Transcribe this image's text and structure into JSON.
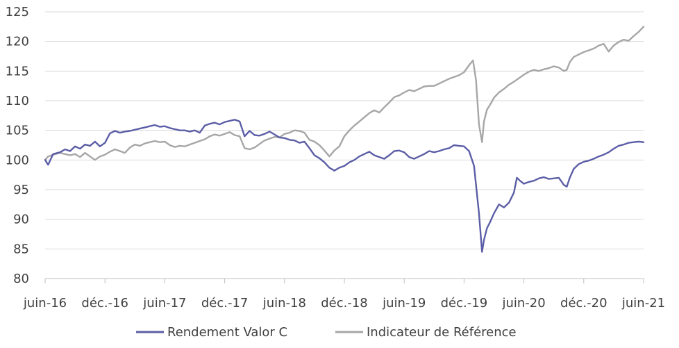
{
  "chart_data": {
    "type": "line",
    "title": "",
    "xlabel": "",
    "ylabel": "",
    "ylim": [
      80,
      125
    ],
    "y_ticks": [
      80,
      85,
      90,
      95,
      100,
      105,
      110,
      115,
      120,
      125
    ],
    "x_tick_labels": [
      "juin-16",
      "déc.-16",
      "juin-17",
      "déc.-17",
      "juin-18",
      "déc.-18",
      "juin-19",
      "déc.-19",
      "juin-20",
      "déc.-20",
      "juin-21"
    ],
    "xlim": [
      0,
      60
    ],
    "x_unit": "months since juin-16",
    "grid": "horizontal",
    "legend_position": "bottom",
    "series": [
      {
        "name": "Rendement Valor C",
        "color": "#5b5ea6",
        "points": [
          [
            0,
            100.0
          ],
          [
            0.3,
            99.2
          ],
          [
            0.8,
            101.0
          ],
          [
            1.5,
            101.3
          ],
          [
            2,
            101.8
          ],
          [
            2.5,
            101.5
          ],
          [
            3,
            102.3
          ],
          [
            3.5,
            101.9
          ],
          [
            4,
            102.6
          ],
          [
            4.5,
            102.4
          ],
          [
            5,
            103.1
          ],
          [
            5.5,
            102.3
          ],
          [
            6,
            102.9
          ],
          [
            6.5,
            104.5
          ],
          [
            7,
            104.9
          ],
          [
            7.5,
            104.6
          ],
          [
            8,
            104.8
          ],
          [
            8.5,
            104.9
          ],
          [
            9,
            105.1
          ],
          [
            9.5,
            105.3
          ],
          [
            10,
            105.5
          ],
          [
            10.5,
            105.7
          ],
          [
            11,
            105.9
          ],
          [
            11.5,
            105.6
          ],
          [
            12,
            105.7
          ],
          [
            12.5,
            105.4
          ],
          [
            13,
            105.2
          ],
          [
            13.5,
            105.0
          ],
          [
            14,
            105.0
          ],
          [
            14.5,
            104.8
          ],
          [
            15,
            105.0
          ],
          [
            15.5,
            104.6
          ],
          [
            16,
            105.8
          ],
          [
            16.5,
            106.1
          ],
          [
            17,
            106.3
          ],
          [
            17.5,
            106.0
          ],
          [
            18,
            106.4
          ],
          [
            18.5,
            106.6
          ],
          [
            19,
            106.8
          ],
          [
            19.5,
            106.5
          ],
          [
            20,
            104.0
          ],
          [
            20.5,
            104.9
          ],
          [
            21,
            104.2
          ],
          [
            21.5,
            104.1
          ],
          [
            22,
            104.4
          ],
          [
            22.5,
            104.8
          ],
          [
            23,
            104.3
          ],
          [
            23.5,
            103.8
          ],
          [
            24,
            103.7
          ],
          [
            24.5,
            103.4
          ],
          [
            25,
            103.3
          ],
          [
            25.5,
            102.9
          ],
          [
            26,
            103.1
          ],
          [
            26.5,
            102.0
          ],
          [
            27,
            100.8
          ],
          [
            27.5,
            100.3
          ],
          [
            28,
            99.6
          ],
          [
            28.5,
            98.7
          ],
          [
            29,
            98.2
          ],
          [
            29.5,
            98.7
          ],
          [
            30,
            99.0
          ],
          [
            30.5,
            99.6
          ],
          [
            31,
            100.0
          ],
          [
            31.5,
            100.6
          ],
          [
            32,
            101.0
          ],
          [
            32.5,
            101.4
          ],
          [
            33,
            100.8
          ],
          [
            33.5,
            100.5
          ],
          [
            34,
            100.2
          ],
          [
            34.5,
            100.8
          ],
          [
            35,
            101.5
          ],
          [
            35.5,
            101.6
          ],
          [
            36,
            101.3
          ],
          [
            36.5,
            100.5
          ],
          [
            37,
            100.2
          ],
          [
            37.5,
            100.6
          ],
          [
            38,
            101.0
          ],
          [
            38.5,
            101.5
          ],
          [
            39,
            101.3
          ],
          [
            39.5,
            101.5
          ],
          [
            40,
            101.8
          ],
          [
            40.5,
            102.0
          ],
          [
            41,
            102.5
          ],
          [
            41.5,
            102.4
          ],
          [
            42,
            102.3
          ],
          [
            42.5,
            101.5
          ],
          [
            43,
            99.0
          ],
          [
            43.5,
            91.0
          ],
          [
            43.8,
            84.5
          ],
          [
            44,
            86.5
          ],
          [
            44.3,
            88.5
          ],
          [
            44.6,
            89.5
          ],
          [
            45,
            91.0
          ],
          [
            45.5,
            92.5
          ],
          [
            46,
            92.0
          ],
          [
            46.5,
            92.8
          ],
          [
            47,
            94.5
          ],
          [
            47.3,
            97.0
          ],
          [
            47.6,
            96.5
          ],
          [
            48,
            96.0
          ],
          [
            48.5,
            96.3
          ],
          [
            49,
            96.5
          ],
          [
            49.5,
            96.9
          ],
          [
            50,
            97.1
          ],
          [
            50.5,
            96.8
          ],
          [
            51,
            96.9
          ],
          [
            51.5,
            97.0
          ],
          [
            52,
            95.8
          ],
          [
            52.3,
            95.5
          ],
          [
            52.6,
            97.0
          ],
          [
            53,
            98.5
          ],
          [
            53.5,
            99.3
          ],
          [
            54,
            99.7
          ],
          [
            54.5,
            99.9
          ],
          [
            55,
            100.2
          ],
          [
            55.5,
            100.6
          ],
          [
            56,
            100.9
          ],
          [
            56.5,
            101.3
          ],
          [
            57,
            101.9
          ],
          [
            57.5,
            102.4
          ],
          [
            58,
            102.6
          ],
          [
            58.5,
            102.9
          ],
          [
            59,
            103.0
          ],
          [
            59.5,
            103.1
          ],
          [
            60,
            103.0
          ]
        ]
      },
      {
        "name": "Indicateur de Référence",
        "color": "#a6a6a6",
        "points": [
          [
            0,
            100.0
          ],
          [
            0.3,
            100.6
          ],
          [
            0.8,
            100.9
          ],
          [
            1.5,
            101.2
          ],
          [
            2,
            101.0
          ],
          [
            2.5,
            100.8
          ],
          [
            3,
            101.0
          ],
          [
            3.5,
            100.5
          ],
          [
            4,
            101.2
          ],
          [
            4.5,
            100.6
          ],
          [
            5,
            100.0
          ],
          [
            5.5,
            100.6
          ],
          [
            6,
            100.9
          ],
          [
            6.5,
            101.4
          ],
          [
            7,
            101.8
          ],
          [
            7.5,
            101.5
          ],
          [
            8,
            101.2
          ],
          [
            8.5,
            102.1
          ],
          [
            9,
            102.6
          ],
          [
            9.5,
            102.4
          ],
          [
            10,
            102.8
          ],
          [
            10.5,
            103.0
          ],
          [
            11,
            103.2
          ],
          [
            11.5,
            103.0
          ],
          [
            12,
            103.1
          ],
          [
            12.5,
            102.5
          ],
          [
            13,
            102.2
          ],
          [
            13.5,
            102.4
          ],
          [
            14,
            102.3
          ],
          [
            14.5,
            102.6
          ],
          [
            15,
            102.9
          ],
          [
            15.5,
            103.2
          ],
          [
            16,
            103.5
          ],
          [
            16.5,
            104.0
          ],
          [
            17,
            104.3
          ],
          [
            17.5,
            104.1
          ],
          [
            18,
            104.4
          ],
          [
            18.5,
            104.7
          ],
          [
            19,
            104.2
          ],
          [
            19.5,
            104.0
          ],
          [
            20,
            102.0
          ],
          [
            20.5,
            101.8
          ],
          [
            21,
            102.1
          ],
          [
            21.5,
            102.7
          ],
          [
            22,
            103.3
          ],
          [
            22.5,
            103.6
          ],
          [
            23,
            103.9
          ],
          [
            23.5,
            103.8
          ],
          [
            24,
            104.4
          ],
          [
            24.5,
            104.6
          ],
          [
            25,
            105.0
          ],
          [
            25.5,
            104.9
          ],
          [
            26,
            104.6
          ],
          [
            26.5,
            103.4
          ],
          [
            27,
            103.1
          ],
          [
            27.5,
            102.5
          ],
          [
            28,
            101.6
          ],
          [
            28.5,
            100.6
          ],
          [
            29,
            101.6
          ],
          [
            29.5,
            102.3
          ],
          [
            30,
            104.0
          ],
          [
            30.5,
            105.0
          ],
          [
            31,
            105.8
          ],
          [
            31.5,
            106.5
          ],
          [
            32,
            107.2
          ],
          [
            32.5,
            107.9
          ],
          [
            33,
            108.4
          ],
          [
            33.5,
            108.0
          ],
          [
            34,
            108.9
          ],
          [
            34.5,
            109.7
          ],
          [
            35,
            110.6
          ],
          [
            35.5,
            110.9
          ],
          [
            36,
            111.4
          ],
          [
            36.5,
            111.8
          ],
          [
            37,
            111.6
          ],
          [
            37.5,
            112.0
          ],
          [
            38,
            112.4
          ],
          [
            38.5,
            112.5
          ],
          [
            39,
            112.5
          ],
          [
            39.5,
            112.9
          ],
          [
            40,
            113.3
          ],
          [
            40.5,
            113.7
          ],
          [
            41,
            114.0
          ],
          [
            41.5,
            114.3
          ],
          [
            42,
            114.8
          ],
          [
            42.5,
            116.0
          ],
          [
            42.9,
            116.8
          ],
          [
            43.2,
            113.5
          ],
          [
            43.5,
            106.0
          ],
          [
            43.8,
            103.0
          ],
          [
            44,
            106.5
          ],
          [
            44.3,
            108.5
          ],
          [
            44.6,
            109.3
          ],
          [
            45,
            110.5
          ],
          [
            45.5,
            111.4
          ],
          [
            46,
            112.0
          ],
          [
            46.5,
            112.7
          ],
          [
            47,
            113.2
          ],
          [
            47.5,
            113.8
          ],
          [
            48,
            114.4
          ],
          [
            48.5,
            114.9
          ],
          [
            49,
            115.2
          ],
          [
            49.5,
            115.0
          ],
          [
            50,
            115.3
          ],
          [
            50.5,
            115.5
          ],
          [
            51,
            115.8
          ],
          [
            51.5,
            115.6
          ],
          [
            52,
            115.0
          ],
          [
            52.3,
            115.2
          ],
          [
            52.6,
            116.5
          ],
          [
            53,
            117.4
          ],
          [
            53.5,
            117.8
          ],
          [
            54,
            118.2
          ],
          [
            54.5,
            118.5
          ],
          [
            55,
            118.8
          ],
          [
            55.5,
            119.3
          ],
          [
            56,
            119.6
          ],
          [
            56.5,
            118.3
          ],
          [
            57,
            119.3
          ],
          [
            57.5,
            119.9
          ],
          [
            58,
            120.3
          ],
          [
            58.5,
            120.1
          ],
          [
            59,
            120.9
          ],
          [
            59.5,
            121.6
          ],
          [
            60,
            122.5
          ]
        ]
      }
    ]
  }
}
